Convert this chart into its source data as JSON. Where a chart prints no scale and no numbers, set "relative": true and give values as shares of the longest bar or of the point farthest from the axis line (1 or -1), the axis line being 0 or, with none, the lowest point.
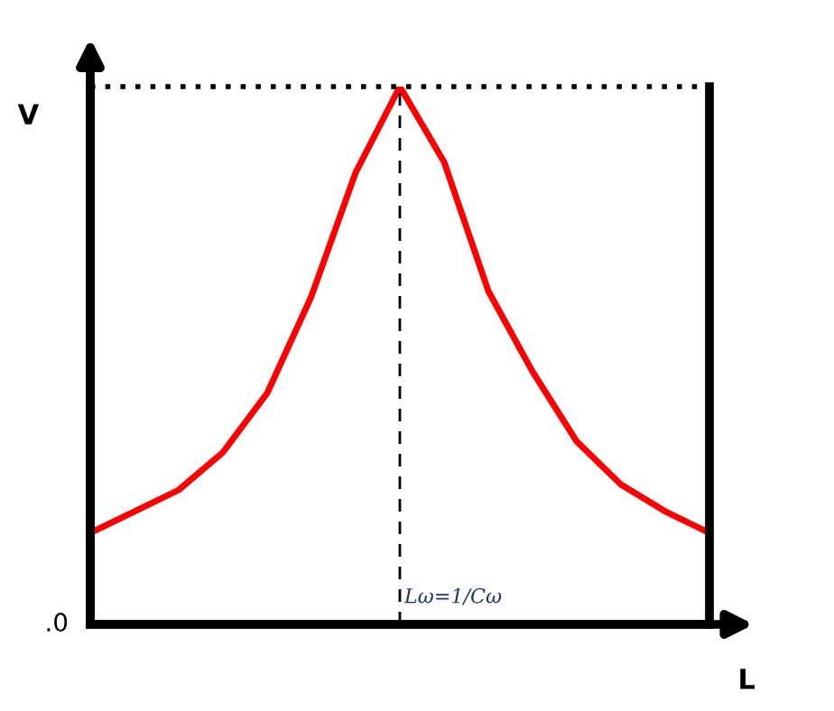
{
  "chart_data": {
    "type": "line",
    "relative": true,
    "xlabel": "L",
    "ylabel": "V",
    "categories": [
      null,
      null,
      null,
      null,
      null,
      null,
      null,
      null,
      null,
      null,
      null,
      null,
      null,
      null,
      null
    ],
    "series": [
      {
        "color": "#ff0000",
        "values": [
          0.17,
          0.21,
          0.25,
          0.32,
          0.43,
          0.61,
          0.84,
          1.0,
          0.86,
          0.62,
          0.47,
          0.34,
          0.26,
          0.21,
          0.17
        ]
      }
    ],
    "ref_lines": [
      {
        "axis": "y",
        "value": 1,
        "color": "#000000",
        "line_style": "dotted"
      }
    ],
    "annotations": [
      ".0",
      "Lω=1/Cω"
    ],
    "grid": false,
    "marker": "none",
    "line_style": "solid"
  }
}
